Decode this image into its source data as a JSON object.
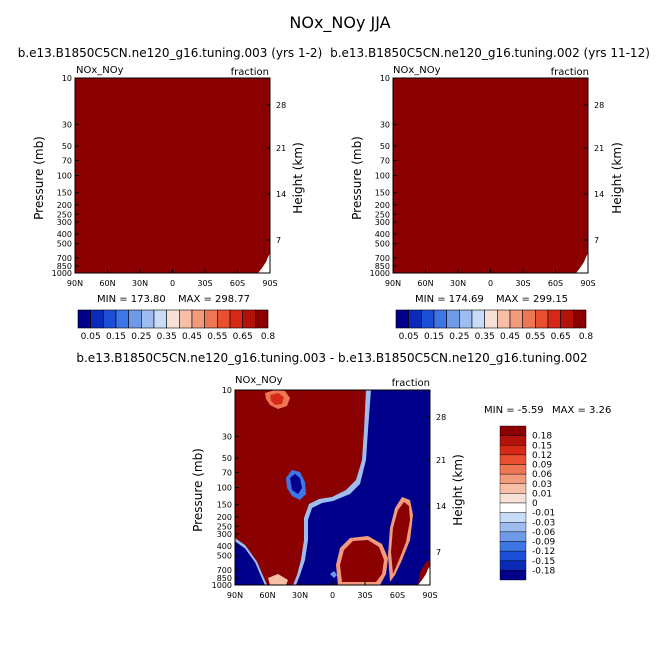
{
  "figure_title": "NOx_NOy JJA",
  "colors": {
    "saturated_red": "#8b0000",
    "deep_blue": "#00008b",
    "frame": "#000000"
  },
  "chart_data": [
    {
      "type": "heatmap",
      "title": "b.e13.B1850C5CN.ne120_g16.tuning.003 (yrs 1-2)",
      "left_label": "NOx_NOy",
      "right_label": "fraction",
      "xlabel": "",
      "ylabel": "Pressure (mb)",
      "ylabel_right": "Height (km)",
      "x_ticks": [
        "90N",
        "60N",
        "30N",
        "0",
        "30S",
        "60S",
        "90S"
      ],
      "y_ticks": [
        "10",
        "30",
        "50",
        "70",
        "100",
        "150",
        "200",
        "250",
        "300",
        "400",
        "500",
        "700",
        "850",
        "1000"
      ],
      "y_ticks_right": [
        "28",
        "21",
        "14",
        "7"
      ],
      "y_scale": "log",
      "ylim": [
        1000,
        10
      ],
      "min_label": "MIN = 173.80",
      "max_label": "MAX = 298.77",
      "colorbar_orientation": "horizontal",
      "colorbar_labels": [
        "0.05",
        "0.15",
        "0.25",
        "0.35",
        "0.45",
        "0.55",
        "0.65",
        "0.8"
      ],
      "colorbar_colors": [
        "#00008b",
        "#0a2ab8",
        "#1b4fd8",
        "#3f76e6",
        "#6f9ae8",
        "#9dbcf0",
        "#c8dcf7",
        "#f7e0d6",
        "#f7bfa8",
        "#f29a7c",
        "#ed7655",
        "#e8502f",
        "#d72a16",
        "#b3120a",
        "#8b0000"
      ],
      "field": "saturated above colorbar maximum (0.8) everywhere"
    },
    {
      "type": "heatmap",
      "title": "b.e13.B1850C5CN.ne120_g16.tuning.002 (yrs 11-12)",
      "left_label": "NOx_NOy",
      "right_label": "fraction",
      "xlabel": "",
      "ylabel": "Pressure (mb)",
      "ylabel_right": "Height (km)",
      "x_ticks": [
        "90N",
        "60N",
        "30N",
        "0",
        "30S",
        "60S",
        "90S"
      ],
      "y_ticks": [
        "10",
        "30",
        "50",
        "70",
        "100",
        "150",
        "200",
        "250",
        "300",
        "400",
        "500",
        "700",
        "850",
        "1000"
      ],
      "y_ticks_right": [
        "28",
        "21",
        "14",
        "7"
      ],
      "y_scale": "log",
      "ylim": [
        1000,
        10
      ],
      "min_label": "MIN = 174.69",
      "max_label": "MAX = 299.15",
      "colorbar_orientation": "horizontal",
      "colorbar_labels": [
        "0.05",
        "0.15",
        "0.25",
        "0.35",
        "0.45",
        "0.55",
        "0.65",
        "0.8"
      ],
      "colorbar_colors": [
        "#00008b",
        "#0a2ab8",
        "#1b4fd8",
        "#3f76e6",
        "#6f9ae8",
        "#9dbcf0",
        "#c8dcf7",
        "#f7e0d6",
        "#f7bfa8",
        "#f29a7c",
        "#ed7655",
        "#e8502f",
        "#d72a16",
        "#b3120a",
        "#8b0000"
      ],
      "field": "saturated above colorbar maximum (0.8) everywhere"
    },
    {
      "type": "heatmap",
      "title": "b.e13.B1850C5CN.ne120_g16.tuning.003 - b.e13.B1850C5CN.ne120_g16.tuning.002",
      "left_label": "NOx_NOy",
      "right_label": "fraction",
      "xlabel": "",
      "ylabel": "Pressure (mb)",
      "ylabel_right": "Height (km)",
      "x_ticks": [
        "90N",
        "60N",
        "30N",
        "0",
        "30S",
        "60S",
        "90S"
      ],
      "y_ticks": [
        "10",
        "30",
        "50",
        "70",
        "100",
        "150",
        "200",
        "250",
        "300",
        "400",
        "500",
        "700",
        "850",
        "1000"
      ],
      "y_ticks_right": [
        "28",
        "21",
        "14",
        "7"
      ],
      "y_scale": "log",
      "ylim": [
        1000,
        10
      ],
      "min_label": "MIN =   -5.59",
      "max_label": "MAX =    3.26",
      "colorbar_orientation": "vertical",
      "colorbar_labels": [
        "0.18",
        "0.15",
        "0.12",
        "0.09",
        "0.06",
        "0.03",
        "0.01",
        "0",
        "-0.01",
        "-0.03",
        "-0.06",
        "-0.09",
        "-0.12",
        "-0.15",
        "-0.18"
      ],
      "colorbar_colors": [
        "#8b0000",
        "#b3120a",
        "#d72a16",
        "#e8502f",
        "#ed7655",
        "#f29a7c",
        "#f7bfa8",
        "#f7e0d6",
        "#ffffff",
        "#c8dcf7",
        "#9dbcf0",
        "#6f9ae8",
        "#3f76e6",
        "#1b4fd8",
        "#0a2ab8",
        "#00008b"
      ],
      "regions": [
        {
          "sign": "positive",
          "description": "saturated positive (>0.18) over northern hemisphere, tropical upper troposphere and stratosphere"
        },
        {
          "sign": "negative",
          "description": "saturated negative (<-0.18) over southern hemisphere upper troposphere/stratosphere and tropical lower troposphere"
        },
        {
          "sign": "positive",
          "description": "positive lobes over 30S-75S in lower troposphere"
        }
      ]
    }
  ]
}
